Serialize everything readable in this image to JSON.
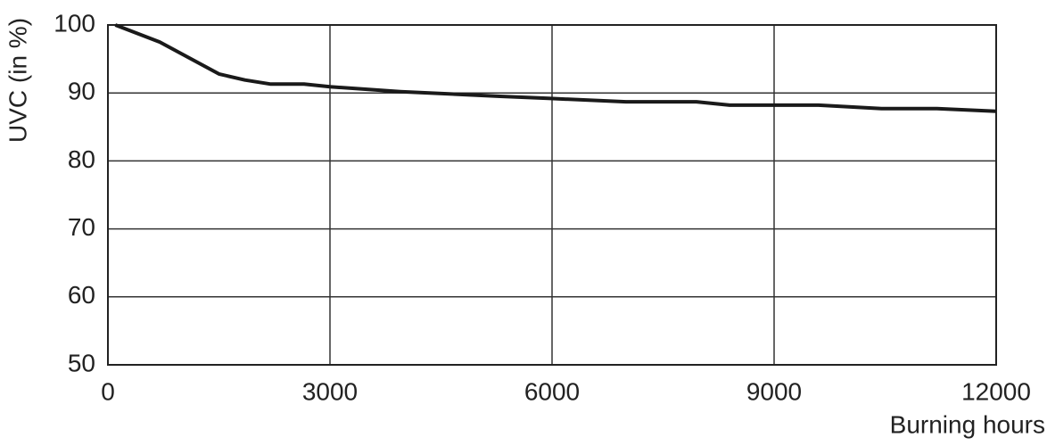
{
  "chart_data": {
    "type": "line",
    "x_label": "Burning hours",
    "y_label": "UVC (in %)",
    "x": [
      100,
      700,
      1500,
      1850,
      2200,
      2650,
      3000,
      3950,
      5300,
      5950,
      7000,
      7950,
      8400,
      9600,
      10450,
      11200,
      12000
    ],
    "values": [
      100,
      97.5,
      92.8,
      91.9,
      91.3,
      91.3,
      90.9,
      90.2,
      89.5,
      89.2,
      88.7,
      88.7,
      88.2,
      88.2,
      87.7,
      87.7,
      87.3
    ],
    "color": "#1a1a1a",
    "xlim": [
      0,
      12000
    ],
    "xticks": [
      0,
      3000,
      6000,
      9000,
      12000
    ],
    "ylim": [
      50,
      100
    ],
    "yticks": [
      50,
      60,
      70,
      80,
      90,
      100
    ],
    "grid": true
  }
}
